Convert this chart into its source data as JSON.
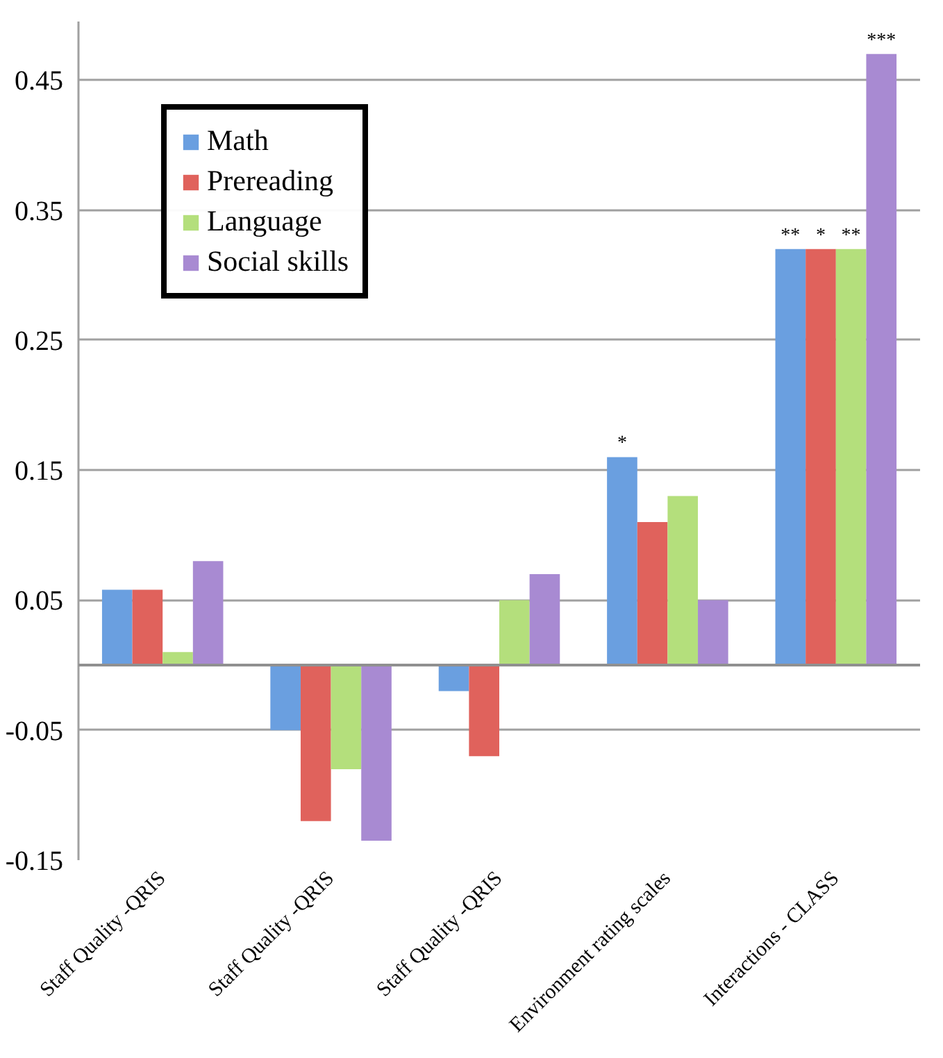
{
  "chart_data": {
    "type": "bar",
    "categories": [
      "Staff Quality -QRIS",
      "Staff Quality -QRIS",
      "Staff Quality -QRIS",
      "Environment rating scales",
      "Interactions - CLASS"
    ],
    "series": [
      {
        "name": "Math",
        "color": "#6a9fe0",
        "values": [
          0.058,
          -0.05,
          -0.02,
          0.16,
          0.32
        ],
        "value_labels": [
          null,
          null,
          null,
          "*",
          "**"
        ]
      },
      {
        "name": "Prereading",
        "color": "#e0625c",
        "values": [
          0.058,
          -0.12,
          -0.07,
          0.11,
          0.32
        ],
        "value_labels": [
          null,
          null,
          null,
          null,
          "*"
        ]
      },
      {
        "name": "Language",
        "color": "#b4df7c",
        "values": [
          0.01,
          -0.08,
          0.05,
          0.13,
          0.32
        ],
        "value_labels": [
          null,
          null,
          null,
          null,
          "**"
        ]
      },
      {
        "name": "Social skills",
        "color": "#a88ad2",
        "values": [
          0.08,
          -0.135,
          0.07,
          0.05,
          0.47
        ],
        "value_labels": [
          null,
          null,
          null,
          null,
          "***"
        ]
      }
    ],
    "ylim": [
      -0.15,
      0.495
    ],
    "yticks": [
      {
        "value": -0.15,
        "label": "-0.15"
      },
      {
        "value": -0.05,
        "label": "-0.05"
      },
      0.05,
      0.15,
      0.25,
      0.35,
      0.45
    ],
    "ref_lines": [
      {
        "axis": "y",
        "value": 0
      }
    ],
    "grid": "y",
    "legend": "top left"
  }
}
